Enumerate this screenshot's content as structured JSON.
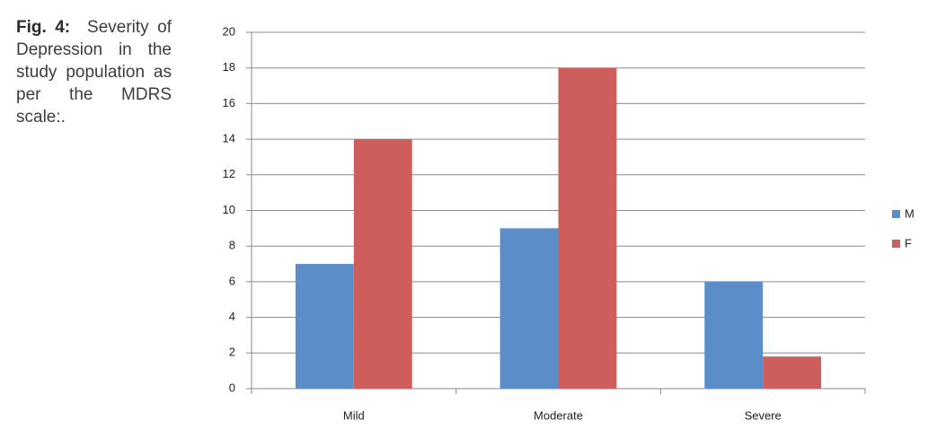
{
  "chart_data": {
    "type": "bar",
    "caption_label": "Fig. 4:",
    "caption": "Severity of Depression in the study population as per the MDRS scale:.",
    "categories": [
      "Mild",
      "Moderate",
      "Severe"
    ],
    "series": [
      {
        "name": "M",
        "color": "#5b8ec9",
        "values": [
          7,
          9,
          6
        ]
      },
      {
        "name": "F",
        "color": "#cd5e5b",
        "values": [
          14,
          18,
          1.8
        ]
      }
    ],
    "ylim": [
      0,
      20
    ],
    "yticks": [
      0,
      2,
      4,
      6,
      8,
      10,
      12,
      14,
      16,
      18,
      20
    ],
    "grid": true,
    "legend": "right"
  }
}
